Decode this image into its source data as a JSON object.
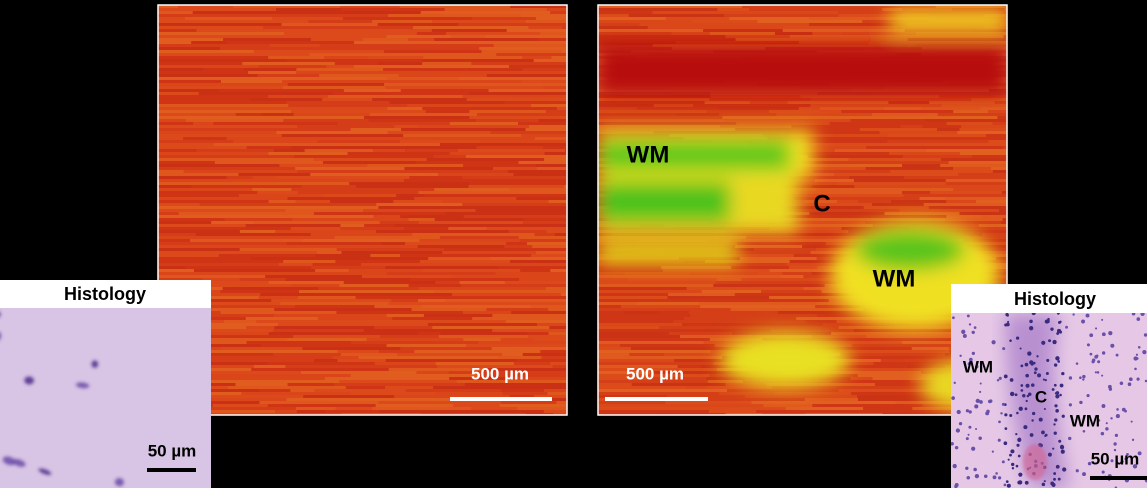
{
  "left_map": {
    "scale_bar": "500 µm"
  },
  "right_map": {
    "scale_bar": "500 µm",
    "labels": [
      "WM",
      "C",
      "WM"
    ]
  },
  "left_histology": {
    "title": "Histology",
    "scale_bar": "50 µm"
  },
  "right_histology": {
    "title": "Histology",
    "labels": [
      "WM",
      "C",
      "WM"
    ],
    "scale_bar": "50 µm"
  }
}
